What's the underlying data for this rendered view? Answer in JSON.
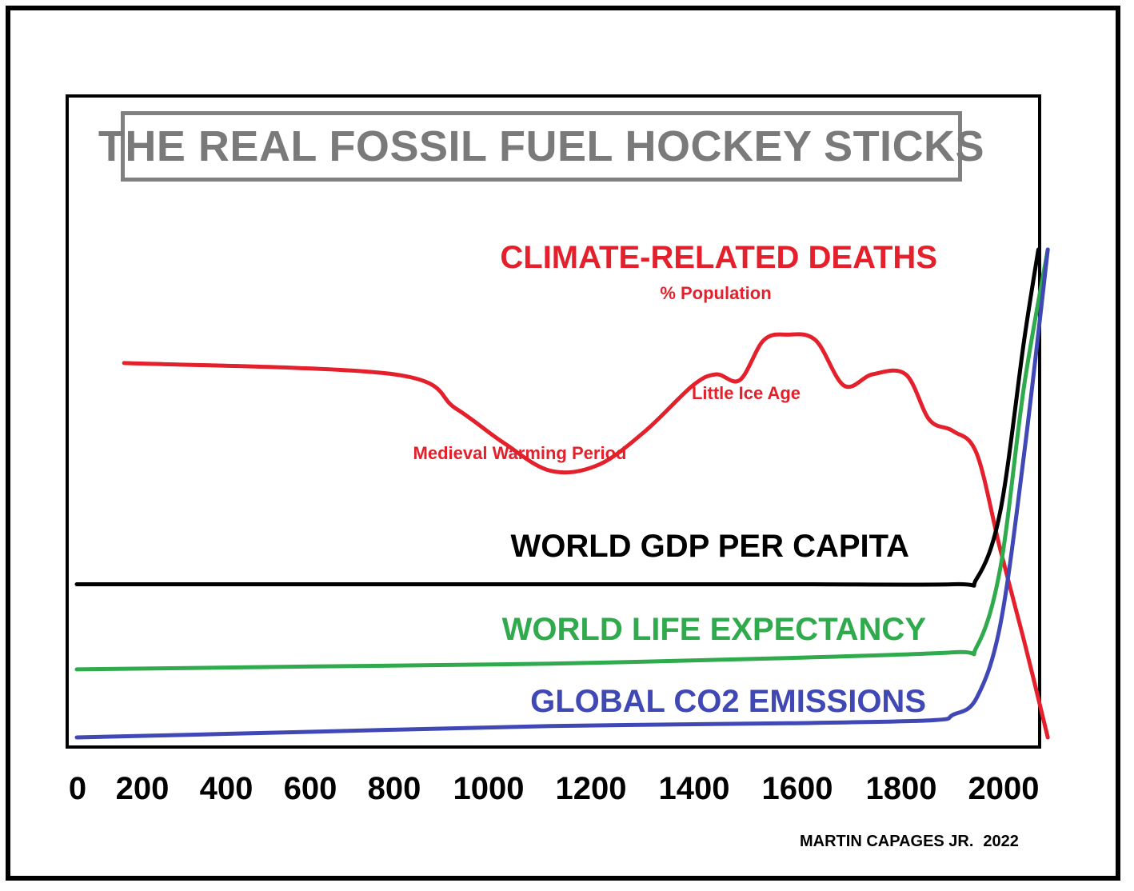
{
  "chart_data": {
    "type": "line",
    "title": "THE REAL FOSSIL FUEL HOCKEY STICKS",
    "xlabel": "",
    "ylabel": "",
    "x_ticks": [
      "0",
      "200",
      "400",
      "600",
      "800",
      "1000",
      "1200",
      "1400",
      "1600",
      "1800",
      "2000"
    ],
    "x_range": [
      0,
      2050
    ],
    "y_scale": "relative (no axis values shown)",
    "grid": false,
    "series": [
      {
        "name": "CLIMATE-RELATED DEATHS",
        "subtitle": "% Population",
        "color": "#e3202b",
        "x": [
          100,
          670,
          800,
          900,
          1000,
          1100,
          1200,
          1300,
          1350,
          1400,
          1450,
          1500,
          1560,
          1620,
          1680,
          1750,
          1800,
          1850,
          1900,
          1950,
          2000,
          2050
        ],
        "y": [
          0.66,
          0.64,
          0.58,
          0.52,
          0.47,
          0.48,
          0.54,
          0.62,
          0.64,
          0.63,
          0.7,
          0.71,
          0.7,
          0.62,
          0.64,
          0.64,
          0.56,
          0.54,
          0.5,
          0.33,
          0.17,
          0.0
        ]
      },
      {
        "name": "WORLD GDP PER CAPITA",
        "color": "#000000",
        "x": [
          0,
          500,
          1000,
          1500,
          1850,
          1900,
          1950,
          2000,
          2030
        ],
        "y": [
          0.27,
          0.27,
          0.27,
          0.27,
          0.27,
          0.28,
          0.4,
          0.7,
          0.86
        ]
      },
      {
        "name": "WORLD LIFE EXPECTANCY",
        "color": "#2faa4c",
        "x": [
          0,
          500,
          1000,
          1500,
          1850,
          1900,
          1950,
          2000,
          2050
        ],
        "y": [
          0.12,
          0.125,
          0.13,
          0.14,
          0.15,
          0.16,
          0.3,
          0.62,
          0.86
        ]
      },
      {
        "name": "GLOBAL CO2 EMISSIONS",
        "color": "#3f48b5",
        "x": [
          0,
          500,
          1000,
          1500,
          1800,
          1850,
          1900,
          1950,
          2000,
          2050
        ],
        "y": [
          0.0,
          0.01,
          0.02,
          0.025,
          0.03,
          0.04,
          0.07,
          0.2,
          0.5,
          0.86
        ]
      }
    ],
    "annotations": [
      {
        "text": "Medieval Warming Period",
        "near_x": 1050
      },
      {
        "text": "Little Ice Age",
        "near_x": 1500
      }
    ]
  },
  "credit": {
    "author": "MARTIN CAPAGES JR.",
    "year": "2022"
  }
}
